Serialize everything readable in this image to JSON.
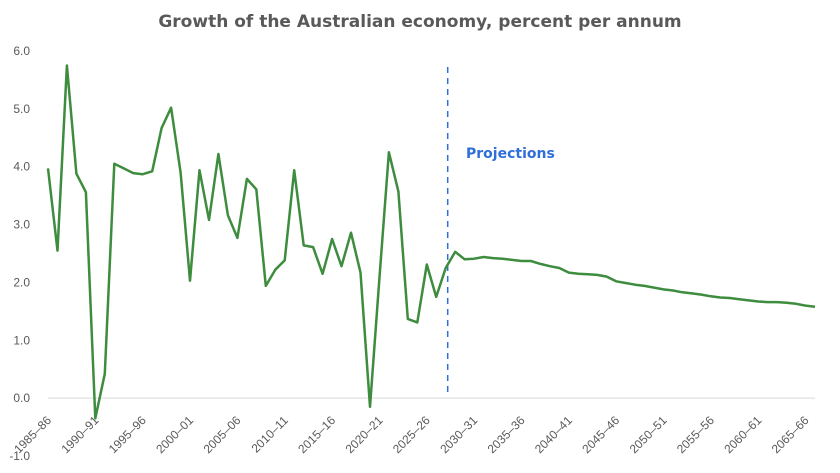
{
  "chart_data": {
    "type": "line",
    "title": "Growth of the Australian economy, percent per annum",
    "xlabel": "",
    "ylabel": "",
    "ylim": [
      -1.0,
      6.0
    ],
    "yticks": [
      "-1.0",
      "0.0",
      "1.0",
      "2.0",
      "3.0",
      "4.0",
      "5.0",
      "6.0"
    ],
    "grid": false,
    "legend": "none",
    "x_tick_labels": [
      "1985–86",
      "1990–91",
      "1995–96",
      "2000–01",
      "2005–06",
      "2010–11",
      "2015–16",
      "2020–21",
      "2025–26",
      "2030–31",
      "2035–36",
      "2040–41",
      "2045–46",
      "2050–51",
      "2055–56",
      "2060–61",
      "2065–66"
    ],
    "first_year": 1985,
    "projection_start_index": 42,
    "annotation": "Projections",
    "series": [
      {
        "color": "#3E8C3E",
        "values": [
          3.97,
          2.55,
          5.75,
          3.88,
          3.56,
          -0.35,
          0.42,
          4.05,
          3.97,
          3.89,
          3.87,
          3.92,
          4.67,
          5.02,
          3.9,
          2.03,
          3.94,
          3.08,
          4.22,
          3.16,
          2.77,
          3.79,
          3.61,
          1.94,
          2.22,
          2.38,
          3.94,
          2.64,
          2.61,
          2.15,
          2.75,
          2.28,
          2.86,
          2.17,
          -0.15,
          2.07,
          4.25,
          3.57,
          1.37,
          1.31,
          2.31,
          1.75,
          2.25,
          2.53,
          2.4,
          2.41,
          2.44,
          2.42,
          2.41,
          2.39,
          2.37,
          2.37,
          2.32,
          2.28,
          2.25,
          2.17,
          2.15,
          2.14,
          2.13,
          2.1,
          2.02,
          1.99,
          1.96,
          1.94,
          1.91,
          1.88,
          1.86,
          1.83,
          1.81,
          1.79,
          1.76,
          1.74,
          1.73,
          1.71,
          1.69,
          1.67,
          1.66,
          1.66,
          1.65,
          1.63,
          1.6,
          1.58
        ]
      }
    ]
  }
}
